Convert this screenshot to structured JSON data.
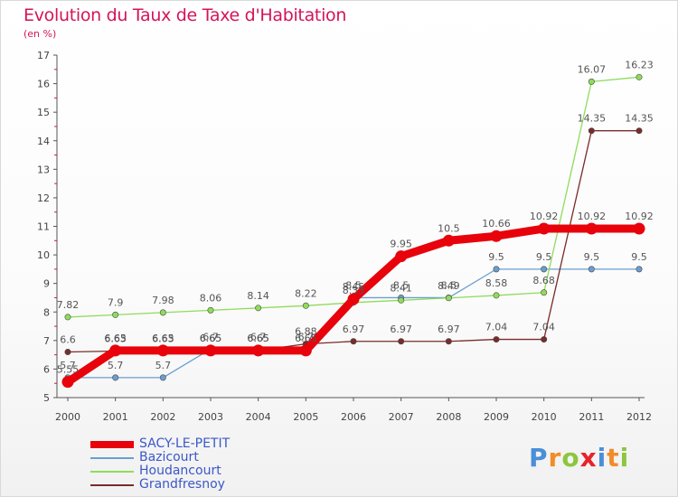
{
  "title": "Evolution du Taux de Taxe d'Habitation",
  "subtitle": "(en %)",
  "logo": {
    "letters": [
      "P",
      "r",
      "o",
      "x",
      "i",
      "t",
      "i"
    ],
    "colors": [
      "#4a8fd8",
      "#f28c28",
      "#8cc63f",
      "#e8232a",
      "#4a8fd8",
      "#f28c28",
      "#8cc63f"
    ]
  },
  "chart_data": {
    "type": "line",
    "title": "Evolution du Taux de Taxe d'Habitation",
    "ylabel": "(en %)",
    "xlabel": "",
    "categories": [
      "2000",
      "2001",
      "2002",
      "2003",
      "2004",
      "2005",
      "2006",
      "2007",
      "2008",
      "2009",
      "2010",
      "2011",
      "2012"
    ],
    "ylim": [
      5,
      17
    ],
    "yticks": [
      "5",
      "6",
      "7",
      "8",
      "9",
      "10",
      "11",
      "12",
      "13",
      "14",
      "15",
      "16",
      "17"
    ],
    "grid": false,
    "legend_position": "bottom-left",
    "series": [
      {
        "name": "SACY-LE-PETIT",
        "color": "#e8020b",
        "values": [
          5.55,
          6.65,
          6.65,
          6.65,
          6.65,
          6.65,
          8.45,
          9.95,
          10.5,
          10.66,
          10.92,
          10.92,
          10.92
        ],
        "labels": [
          "5.55",
          "6.65",
          "6.65",
          "6.65",
          "6.65",
          "6.65",
          "8.45",
          "9.95",
          "10.5",
          "10.66",
          "10.92",
          "10.92",
          "10.92"
        ]
      },
      {
        "name": "Bazicourt",
        "color": "#6a9ed0",
        "values": [
          5.7,
          5.7,
          5.7,
          6.7,
          6.7,
          6.7,
          8.5,
          8.5,
          8.5,
          9.5,
          9.5,
          9.5,
          9.5
        ],
        "labels": [
          "5.7",
          "5.7",
          "5.7",
          "6.7",
          "6.7",
          "6.7",
          "8.5",
          "8.5",
          "8.5",
          "9.5",
          "9.5",
          "9.5",
          "9.5"
        ]
      },
      {
        "name": "Houdancourt",
        "color": "#8fdc5a",
        "values": [
          7.82,
          7.9,
          7.98,
          8.06,
          8.14,
          8.22,
          8.33,
          8.41,
          8.49,
          8.58,
          8.68,
          16.07,
          16.23
        ],
        "labels": [
          "7.82",
          "7.9",
          "7.98",
          "8.06",
          "8.14",
          "8.22",
          "8.33",
          "8.41",
          "8.49",
          "8.58",
          "8.68",
          "16.07",
          "16.23"
        ]
      },
      {
        "name": "Grandfresnoy",
        "color": "#7a2b2b",
        "values": [
          6.6,
          6.63,
          6.63,
          6.65,
          6.65,
          6.88,
          6.97,
          6.97,
          6.97,
          7.04,
          7.04,
          14.35,
          14.35
        ],
        "labels": [
          "6.6",
          "6.63",
          "6.63",
          "6.65",
          "6.65",
          "6.88",
          "6.97",
          "6.97",
          "6.97",
          "7.04",
          "7.04",
          "14.35",
          "14.35"
        ]
      }
    ]
  }
}
